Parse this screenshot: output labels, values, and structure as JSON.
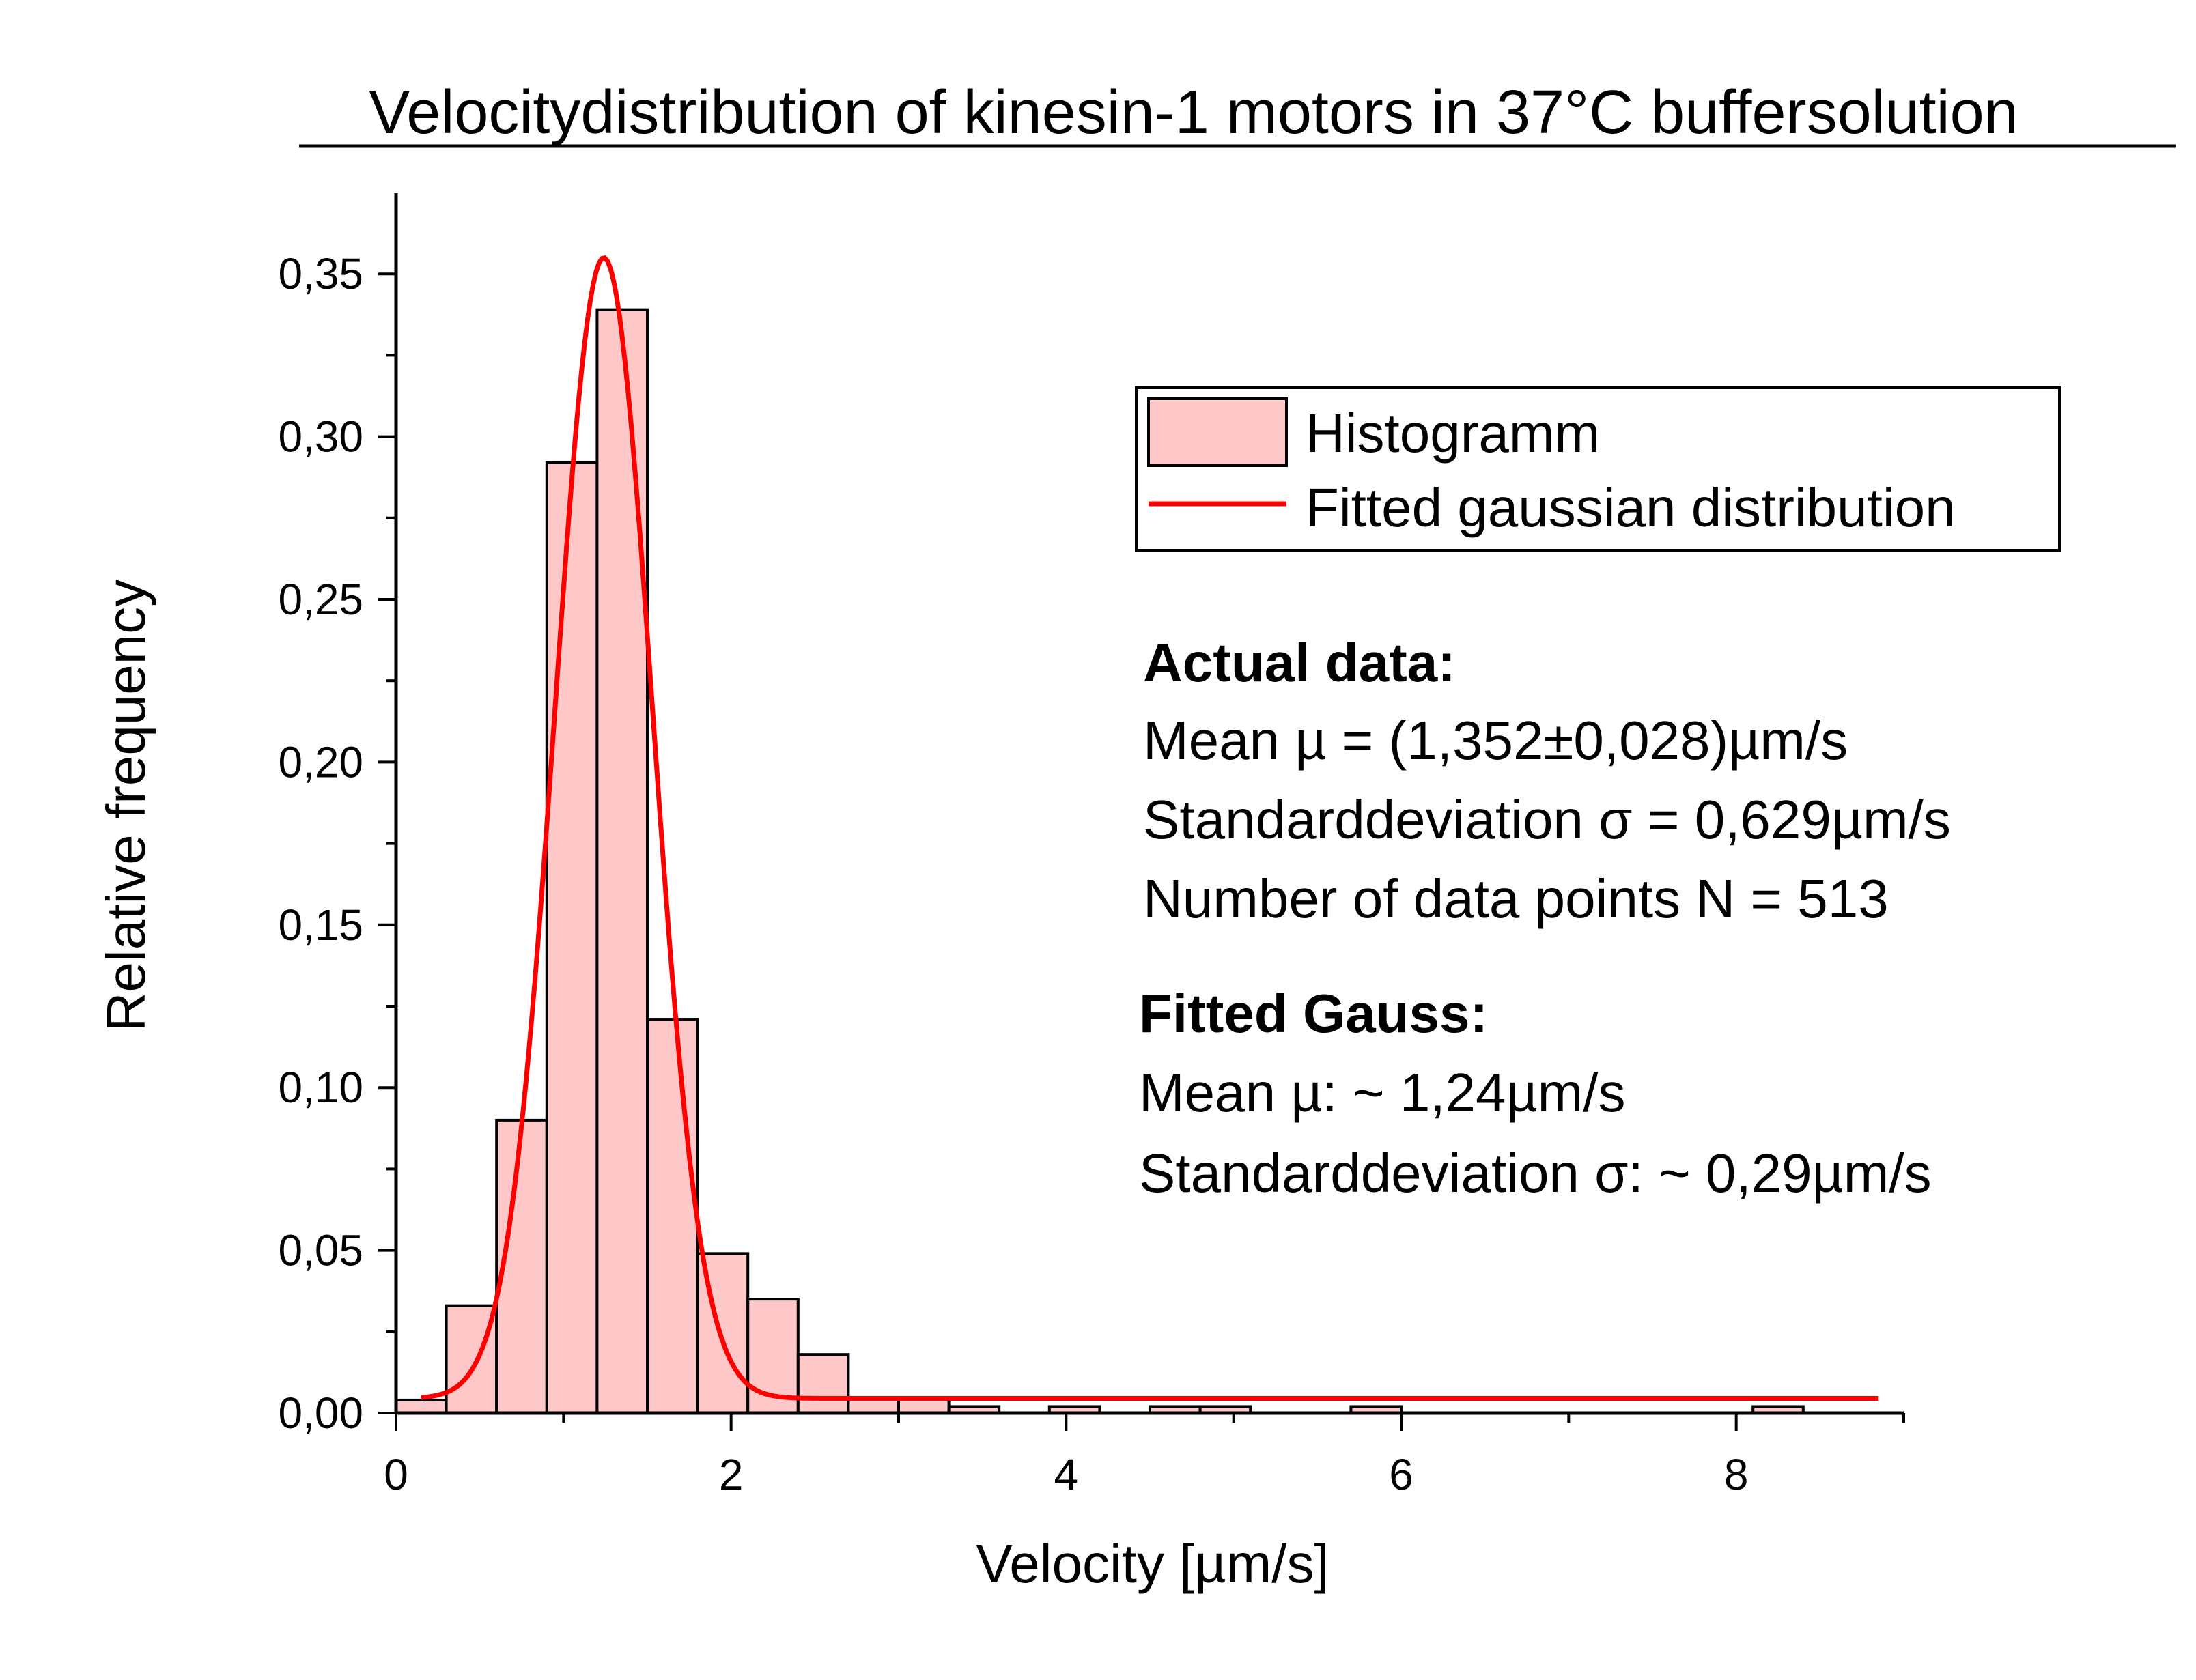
{
  "colors": {
    "bar_fill": "#ffc8c8",
    "bar_stroke": "#000000",
    "fit_line": "#ff0000",
    "axis": "#000000"
  },
  "chart_data": {
    "type": "bar",
    "title": "Velocitydistribution of kinesin-1 motors in 37°C buffersolution",
    "xlabel": "Velocity [µm/s]",
    "ylabel": "Relative frequency",
    "xlim": [
      0,
      9
    ],
    "ylim": [
      0,
      0.375
    ],
    "x_ticks": [
      0,
      2,
      4,
      6,
      8
    ],
    "x_tick_labels": [
      "0",
      "2",
      "4",
      "6",
      "8"
    ],
    "y_ticks": [
      0,
      0.05,
      0.1,
      0.15,
      0.2,
      0.25,
      0.3,
      0.35
    ],
    "y_tick_labels": [
      "0,00",
      "0,05",
      "0,10",
      "0,15",
      "0,20",
      "0,25",
      "0,30",
      "0,35"
    ],
    "bin_width": 0.3,
    "bin_starts": [
      0,
      0.3,
      0.6,
      0.9,
      1.2,
      1.5,
      1.8,
      2.1,
      2.4,
      2.7,
      3.0,
      3.3,
      3.6,
      3.9,
      4.2,
      4.5,
      4.8,
      5.1,
      5.4,
      5.7,
      6.0,
      6.3,
      6.6,
      6.9,
      7.2,
      7.5,
      7.8,
      8.1
    ],
    "values": [
      0.004,
      0.033,
      0.09,
      0.292,
      0.339,
      0.121,
      0.049,
      0.035,
      0.018,
      0.004,
      0.004,
      0.002,
      0,
      0.002,
      0,
      0.002,
      0.002,
      0,
      0,
      0.002,
      0,
      0,
      0,
      0,
      0,
      0,
      0,
      0.002
    ],
    "fit": {
      "name": "Fitted gaussian distribution",
      "mean": 1.24,
      "sigma": 0.29,
      "peak": 0.355,
      "baseline": 0.0045,
      "x_start": 0.15,
      "x_end": 8.85
    },
    "legend": {
      "placement": "top-right",
      "entries": [
        "Histogramm",
        "Fitted gaussian distribution"
      ]
    }
  },
  "stats": {
    "actual_heading": "Actual data:",
    "actual_lines": [
      "Mean µ = (1,352±0,028)µm/s",
      "Standarddeviation σ = 0,629µm/s",
      "Number of data points N = 513"
    ],
    "fitted_heading": "Fitted Gauss:",
    "fitted_lines": [
      "Mean µ: ~ 1,24µm/s",
      "Standarddeviation σ: ~ 0,29µm/s"
    ]
  }
}
